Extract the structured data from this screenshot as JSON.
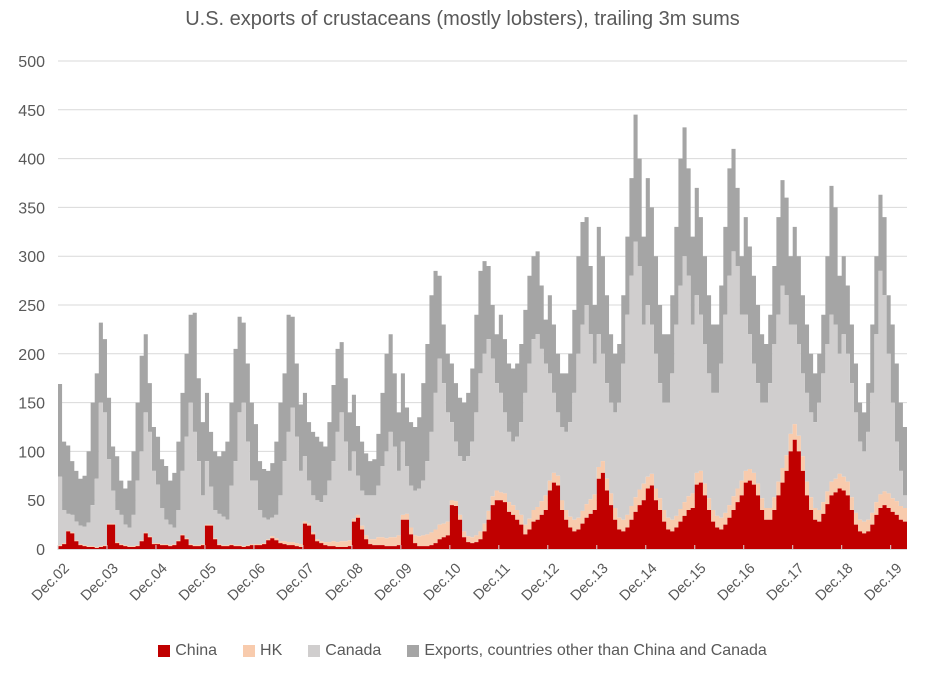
{
  "chart_data": {
    "type": "area",
    "subtype": "stacked-step",
    "title": "U.S. exports of crustaceans (mostly lobsters), trailing 3m sums",
    "xlabel": "",
    "ylabel": "",
    "ylim": [
      0,
      500
    ],
    "yticks": [
      0,
      50,
      100,
      150,
      200,
      250,
      300,
      350,
      400,
      450,
      500
    ],
    "grid": true,
    "legend_position": "bottom",
    "x_start": "Dec.02",
    "x_frequency": "monthly",
    "x_tick_labels": [
      "Dec.02",
      "Dec.03",
      "Dec.04",
      "Dec.05",
      "Dec.06",
      "Dec.07",
      "Dec.08",
      "Dec.09",
      "Dec.10",
      "Dec.11",
      "Dec.12",
      "Dec.13",
      "Dec.14",
      "Dec.15",
      "Dec.16",
      "Dec.17",
      "Dec.18",
      "Dec.19"
    ],
    "series_order_bottom_to_top": [
      "China",
      "HK",
      "Canada",
      "Exports, countries other than China and Canada"
    ],
    "colors": {
      "China": "#C00000",
      "HK": "#F8CBAD",
      "Canada": "#D0CECE",
      "Exports, countries other than China and Canada": "#A5A5A5"
    },
    "yearly_profiles_note": "Each year: 12 monthly values starting at Dec of that year; values are cumulative stack tops (china, china+hk, china+hk+canada, total).",
    "years": [
      {
        "label": "Dec.02",
        "china": [
          3,
          5,
          18,
          16,
          8,
          4,
          3,
          2,
          2,
          1,
          2,
          3
        ],
        "hk": [
          1,
          1,
          1,
          1,
          1,
          1,
          1,
          1,
          1,
          1,
          1,
          1
        ],
        "canada_top": [
          74,
          40,
          36,
          35,
          28,
          24,
          23,
          27,
          45,
          72,
          150,
          140
        ],
        "total": [
          169,
          110,
          106,
          90,
          80,
          72,
          75,
          100,
          150,
          180,
          232,
          215
        ]
      },
      {
        "label": "Dec.03",
        "china": [
          25,
          25,
          6,
          4,
          3,
          2,
          2,
          3,
          8,
          16,
          12,
          5
        ],
        "hk": [
          1,
          1,
          1,
          1,
          1,
          1,
          1,
          1,
          1,
          1,
          1,
          1
        ],
        "canada_top": [
          92,
          60,
          40,
          35,
          25,
          22,
          35,
          70,
          100,
          140,
          120,
          80
        ],
        "total": [
          155,
          105,
          95,
          70,
          62,
          70,
          100,
          150,
          198,
          220,
          170,
          125
        ]
      },
      {
        "label": "Dec.04",
        "china": [
          5,
          4,
          4,
          3,
          4,
          8,
          14,
          10,
          4,
          3,
          3,
          4
        ],
        "hk": [
          1,
          1,
          1,
          1,
          1,
          1,
          1,
          1,
          1,
          1,
          1,
          1
        ],
        "canada_top": [
          66,
          42,
          30,
          25,
          22,
          40,
          80,
          115,
          150,
          120,
          90,
          55
        ],
        "total": [
          115,
          92,
          85,
          70,
          78,
          110,
          160,
          200,
          240,
          242,
          175,
          130
        ]
      },
      {
        "label": "Dec.05",
        "china": [
          24,
          24,
          10,
          4,
          3,
          3,
          4,
          3,
          3,
          2,
          3,
          4
        ],
        "hk": [
          1,
          1,
          1,
          1,
          1,
          1,
          1,
          1,
          1,
          1,
          1,
          1
        ],
        "canada_top": [
          90,
          64,
          40,
          36,
          33,
          30,
          65,
          90,
          140,
          150,
          110,
          70
        ],
        "total": [
          160,
          120,
          100,
          95,
          100,
          110,
          150,
          205,
          238,
          232,
          190,
          150
        ]
      },
      {
        "label": "Dec.06",
        "china": [
          4,
          4,
          5,
          9,
          11,
          9,
          6,
          5,
          4,
          4,
          3,
          2
        ],
        "hk": [
          1,
          1,
          1,
          1,
          2,
          2,
          2,
          3,
          3,
          3,
          3,
          3
        ],
        "canada_top": [
          70,
          40,
          32,
          30,
          32,
          35,
          55,
          90,
          120,
          145,
          115,
          80
        ],
        "total": [
          128,
          90,
          82,
          80,
          88,
          110,
          150,
          180,
          240,
          238,
          190,
          148
        ]
      },
      {
        "label": "Dec.07",
        "china": [
          26,
          24,
          15,
          8,
          6,
          4,
          3,
          3,
          2,
          2,
          2,
          3
        ],
        "hk": [
          2,
          2,
          2,
          2,
          2,
          3,
          4,
          5,
          5,
          6,
          6,
          6
        ],
        "canada_top": [
          95,
          70,
          55,
          50,
          48,
          55,
          70,
          90,
          120,
          140,
          110,
          80
        ],
        "total": [
          160,
          130,
          120,
          115,
          110,
          105,
          130,
          168,
          205,
          212,
          175,
          140
        ]
      },
      {
        "label": "Dec.08",
        "china": [
          28,
          32,
          20,
          10,
          5,
          4,
          4,
          4,
          3,
          3,
          3,
          4
        ],
        "hk": [
          3,
          3,
          4,
          4,
          5,
          6,
          8,
          8,
          8,
          9,
          9,
          10
        ],
        "canada_top": [
          100,
          75,
          60,
          55,
          55,
          55,
          65,
          85,
          100,
          120,
          105,
          80
        ],
        "total": [
          158,
          126,
          110,
          98,
          90,
          92,
          118,
          160,
          200,
          220,
          180,
          140
        ]
      },
      {
        "label": "Dec.09",
        "china": [
          30,
          30,
          15,
          6,
          3,
          3,
          3,
          4,
          6,
          10,
          12,
          14
        ],
        "hk": [
          5,
          6,
          7,
          8,
          10,
          11,
          12,
          13,
          14,
          15,
          14,
          14
        ],
        "canada_top": [
          110,
          85,
          65,
          60,
          62,
          70,
          90,
          120,
          160,
          195,
          170,
          140
        ],
        "total": [
          180,
          145,
          130,
          125,
          135,
          170,
          210,
          260,
          285,
          280,
          230,
          200
        ]
      },
      {
        "label": "Dec.10",
        "china": [
          45,
          44,
          30,
          12,
          7,
          6,
          7,
          10,
          18,
          30,
          45,
          50
        ],
        "hk": [
          5,
          5,
          5,
          6,
          6,
          6,
          7,
          8,
          8,
          9,
          9,
          10
        ],
        "canada_top": [
          130,
          110,
          95,
          90,
          95,
          110,
          140,
          180,
          200,
          215,
          195,
          170
        ],
        "total": [
          190,
          170,
          155,
          150,
          160,
          185,
          240,
          285,
          295,
          290,
          250,
          220
        ]
      },
      {
        "label": "Dec.11",
        "china": [
          50,
          48,
          38,
          35,
          30,
          25,
          15,
          20,
          28,
          30,
          35,
          40
        ],
        "hk": [
          8,
          9,
          10,
          10,
          10,
          10,
          10,
          11,
          12,
          13,
          14,
          15
        ],
        "canada_top": [
          160,
          140,
          120,
          110,
          115,
          130,
          160,
          190,
          215,
          220,
          205,
          190
        ],
        "total": [
          240,
          215,
          190,
          185,
          190,
          210,
          245,
          280,
          300,
          305,
          270,
          235
        ]
      },
      {
        "label": "Dec.12",
        "china": [
          60,
          68,
          65,
          40,
          30,
          22,
          18,
          20,
          26,
          32,
          36,
          40
        ],
        "hk": [
          10,
          10,
          10,
          10,
          10,
          11,
          12,
          12,
          13,
          14,
          15,
          16
        ],
        "canada_top": [
          180,
          160,
          140,
          125,
          120,
          130,
          160,
          200,
          230,
          250,
          220,
          190
        ],
        "total": [
          260,
          230,
          200,
          180,
          180,
          200,
          245,
          300,
          335,
          340,
          290,
          250
        ]
      },
      {
        "label": "Dec.13",
        "china": [
          72,
          78,
          60,
          45,
          30,
          20,
          18,
          22,
          30,
          38,
          45,
          50
        ],
        "hk": [
          12,
          12,
          12,
          12,
          12,
          12,
          12,
          13,
          14,
          15,
          16,
          17
        ],
        "canada_top": [
          220,
          200,
          170,
          150,
          140,
          150,
          190,
          240,
          280,
          315,
          290,
          230
        ]
      },
      {
        "label": "Dec.14",
        "china": [
          62,
          65,
          50,
          40,
          28,
          20,
          18,
          22,
          28,
          34,
          40,
          42
        ],
        "hk": [
          12,
          12,
          12,
          12,
          12,
          12,
          12,
          12,
          13,
          14,
          14,
          15
        ],
        "canada_top": [
          250,
          230,
          200,
          170,
          150,
          150,
          180,
          230,
          270,
          300,
          280,
          230
        ]
      },
      {
        "label": "Dec.15",
        "china": [
          66,
          68,
          55,
          40,
          28,
          22,
          20,
          25,
          32,
          40,
          48,
          55
        ],
        "hk": [
          12,
          12,
          12,
          12,
          12,
          12,
          12,
          12,
          13,
          14,
          14,
          15
        ],
        "canada_top": [
          260,
          240,
          210,
          180,
          160,
          160,
          190,
          240,
          280,
          305,
          290,
          240
        ]
      },
      {
        "label": "Dec.16",
        "china": [
          68,
          70,
          66,
          55,
          40,
          30,
          30,
          40,
          55,
          68,
          80,
          100
        ],
        "hk": [
          12,
          12,
          12,
          12,
          12,
          12,
          12,
          13,
          14,
          15,
          16,
          18
        ],
        "canada_top": [
          240,
          220,
          190,
          170,
          150,
          150,
          170,
          210,
          240,
          270,
          260,
          230
        ]
      },
      {
        "label": "Dec.17",
        "china": [
          112,
          100,
          80,
          55,
          40,
          30,
          28,
          36,
          46,
          55,
          58,
          62
        ],
        "hk": [
          16,
          16,
          15,
          14,
          13,
          12,
          12,
          12,
          13,
          14,
          14,
          15
        ],
        "canada_top": [
          230,
          210,
          180,
          160,
          140,
          130,
          150,
          180,
          210,
          240,
          230,
          200
        ]
      },
      {
        "label": "Dec.18",
        "china": [
          60,
          55,
          40,
          25,
          18,
          16,
          18,
          25,
          35,
          42,
          45,
          42
        ],
        "hk": [
          14,
          14,
          13,
          12,
          12,
          12,
          12,
          12,
          13,
          14,
          14,
          15
        ],
        "canada_top": [
          220,
          200,
          170,
          140,
          110,
          100,
          120,
          160,
          220,
          285,
          260,
          200
        ]
      },
      {
        "label": "Dec.19",
        "china": [
          38,
          35,
          30,
          28
        ],
        "hk": [
          14,
          14,
          14,
          14
        ],
        "canada_top": [
          150,
          110,
          80,
          55
        ]
      }
    ],
    "totals_late": {
      "Dec.13": [
        330,
        300,
        260,
        220,
        200,
        210,
        260,
        320,
        380,
        445,
        400,
        320
      ],
      "Dec.14": [
        380,
        350,
        300,
        250,
        220,
        220,
        260,
        330,
        400,
        432,
        390,
        320
      ],
      "Dec.15": [
        370,
        340,
        300,
        260,
        230,
        230,
        270,
        330,
        390,
        410,
        370,
        300
      ],
      "Dec.16": [
        340,
        310,
        280,
        250,
        220,
        210,
        240,
        290,
        340,
        378,
        360,
        300
      ],
      "Dec.17": [
        330,
        300,
        260,
        230,
        200,
        180,
        200,
        240,
        300,
        372,
        350,
        280
      ],
      "Dec.18": [
        300,
        270,
        230,
        190,
        150,
        140,
        170,
        230,
        300,
        363,
        340,
        260
      ],
      "Dec.19": [
        230,
        190,
        150,
        125
      ]
    }
  },
  "legend": {
    "items": [
      {
        "label": "China",
        "color": "#C00000"
      },
      {
        "label": "HK",
        "color": "#F8CBAD"
      },
      {
        "label": "Canada",
        "color": "#D0CECE"
      },
      {
        "label": "Exports, countries other than China and Canada",
        "color": "#A5A5A5"
      }
    ]
  }
}
